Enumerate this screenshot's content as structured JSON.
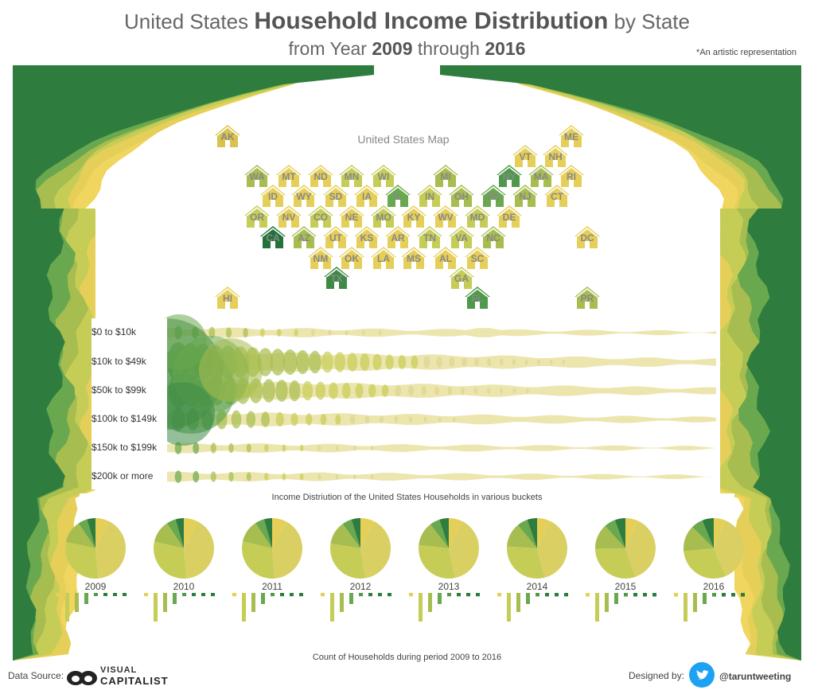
{
  "header": {
    "title_pre": "United States ",
    "title_bold": "Household Income Distribution",
    "title_post": " by State",
    "sub_pre": "from Year ",
    "sub_y1": "2009",
    "sub_mid": " through ",
    "sub_y2": "2016",
    "note": "*An artistic representation"
  },
  "map": {
    "title": "United States Map",
    "states": [
      {
        "s": "AK",
        "c": "#d9c24e"
      },
      {
        "s": "ME",
        "c": "#e6cf58"
      },
      {
        "s": "VT",
        "c": "#e6cf58"
      },
      {
        "s": "NH",
        "c": "#e6cf58"
      },
      {
        "s": "WA",
        "c": "#a7bd4f"
      },
      {
        "s": "MT",
        "c": "#e6cf58"
      },
      {
        "s": "ND",
        "c": "#e6cf58"
      },
      {
        "s": "MN",
        "c": "#c6cd56"
      },
      {
        "s": "WI",
        "c": "#c6cd56"
      },
      {
        "s": "MI",
        "c": "#a7bd4f"
      },
      {
        "s": "NY",
        "c": "#4e9a4a"
      },
      {
        "s": "MA",
        "c": "#a7bd4f"
      },
      {
        "s": "RI",
        "c": "#e6cf58"
      },
      {
        "s": "ID",
        "c": "#e6cf58"
      },
      {
        "s": "WY",
        "c": "#e6cf58"
      },
      {
        "s": "SD",
        "c": "#e6cf58"
      },
      {
        "s": "IA",
        "c": "#e6cf58"
      },
      {
        "s": "IL",
        "c": "#6aa84f"
      },
      {
        "s": "IN",
        "c": "#c6cd56"
      },
      {
        "s": "OH",
        "c": "#a7bd4f"
      },
      {
        "s": "PA",
        "c": "#6aa84f"
      },
      {
        "s": "NJ",
        "c": "#a7bd4f"
      },
      {
        "s": "CT",
        "c": "#e6cf58"
      },
      {
        "s": "OR",
        "c": "#c6cd56"
      },
      {
        "s": "NV",
        "c": "#e6cf58"
      },
      {
        "s": "CO",
        "c": "#c6cd56"
      },
      {
        "s": "NE",
        "c": "#e6cf58"
      },
      {
        "s": "MO",
        "c": "#c6cd56"
      },
      {
        "s": "KY",
        "c": "#e6cf58"
      },
      {
        "s": "WV",
        "c": "#e6cf58"
      },
      {
        "s": "MD",
        "c": "#c6cd56"
      },
      {
        "s": "DE",
        "c": "#e6cf58"
      },
      {
        "s": "CA",
        "c": "#22733a"
      },
      {
        "s": "AZ",
        "c": "#a7bd4f"
      },
      {
        "s": "UT",
        "c": "#e6cf58"
      },
      {
        "s": "KS",
        "c": "#e6cf58"
      },
      {
        "s": "AR",
        "c": "#e6cf58"
      },
      {
        "s": "TN",
        "c": "#c6cd56"
      },
      {
        "s": "VA",
        "c": "#c6cd56"
      },
      {
        "s": "NC",
        "c": "#a7bd4f"
      },
      {
        "s": "DC",
        "c": "#e6cf58"
      },
      {
        "s": "NM",
        "c": "#e6cf58"
      },
      {
        "s": "OK",
        "c": "#e6cf58"
      },
      {
        "s": "LA",
        "c": "#e6cf58"
      },
      {
        "s": "MS",
        "c": "#e6cf58"
      },
      {
        "s": "AL",
        "c": "#e6cf58"
      },
      {
        "s": "SC",
        "c": "#e6cf58"
      },
      {
        "s": "TX",
        "c": "#3d8a45"
      },
      {
        "s": "GA",
        "c": "#c6cd56"
      },
      {
        "s": "HI",
        "c": "#e6cf58"
      },
      {
        "s": "FL",
        "c": "#4e9a4a"
      },
      {
        "s": "PR",
        "c": "#a7bd4f"
      }
    ]
  },
  "chart_data": [
    {
      "type": "bubble",
      "categories": [
        "$0 to $10k",
        "$10k to $49k",
        "$50k to $99k",
        "$100k to $149k",
        "$150k to $199k",
        "$200k or more"
      ],
      "caption": "Income Distriution of the United States Households in various buckets",
      "relative_size": [
        0.25,
        1.0,
        0.85,
        0.55,
        0.22,
        0.22
      ]
    },
    {
      "type": "pie",
      "years": [
        "2009",
        "2010",
        "2011",
        "2012",
        "2013",
        "2014",
        "2015",
        "2016"
      ],
      "slice_labels": [
        "$0 to $10k",
        "$10k to $49k",
        "$50k to $99k",
        "$100k to $149k",
        "$150k to $199k",
        "$200k or more"
      ],
      "slice_colors": [
        "#e6cf58",
        "#d9cf63",
        "#c6cd56",
        "#a7bd4f",
        "#6aa84f",
        "#2f7d3e"
      ],
      "shares": [
        [
          7.5,
          41,
          30,
          12,
          5,
          4.5
        ],
        [
          7.6,
          41,
          30,
          12,
          5,
          4.4
        ],
        [
          7.7,
          41,
          30,
          12,
          5,
          4.3
        ],
        [
          7.5,
          40,
          30,
          12.5,
          5.2,
          4.8
        ],
        [
          7.3,
          39.5,
          30,
          12.8,
          5.4,
          5
        ],
        [
          7.0,
          39,
          30,
          13,
          5.7,
          5.3
        ],
        [
          6.8,
          38,
          30,
          13.5,
          6,
          5.7
        ],
        [
          6.5,
          37,
          30,
          14,
          6.3,
          6.2
        ]
      ]
    },
    {
      "type": "bar",
      "caption": "Count of Households during period 2009 to 2016"
    }
  ],
  "footer": {
    "data_source": "Data Source:",
    "vc_top": "VISUAL",
    "vc_bottom": "CAPITALIST",
    "designed_by": "Designed by:",
    "handle": "@taruntweeting"
  }
}
